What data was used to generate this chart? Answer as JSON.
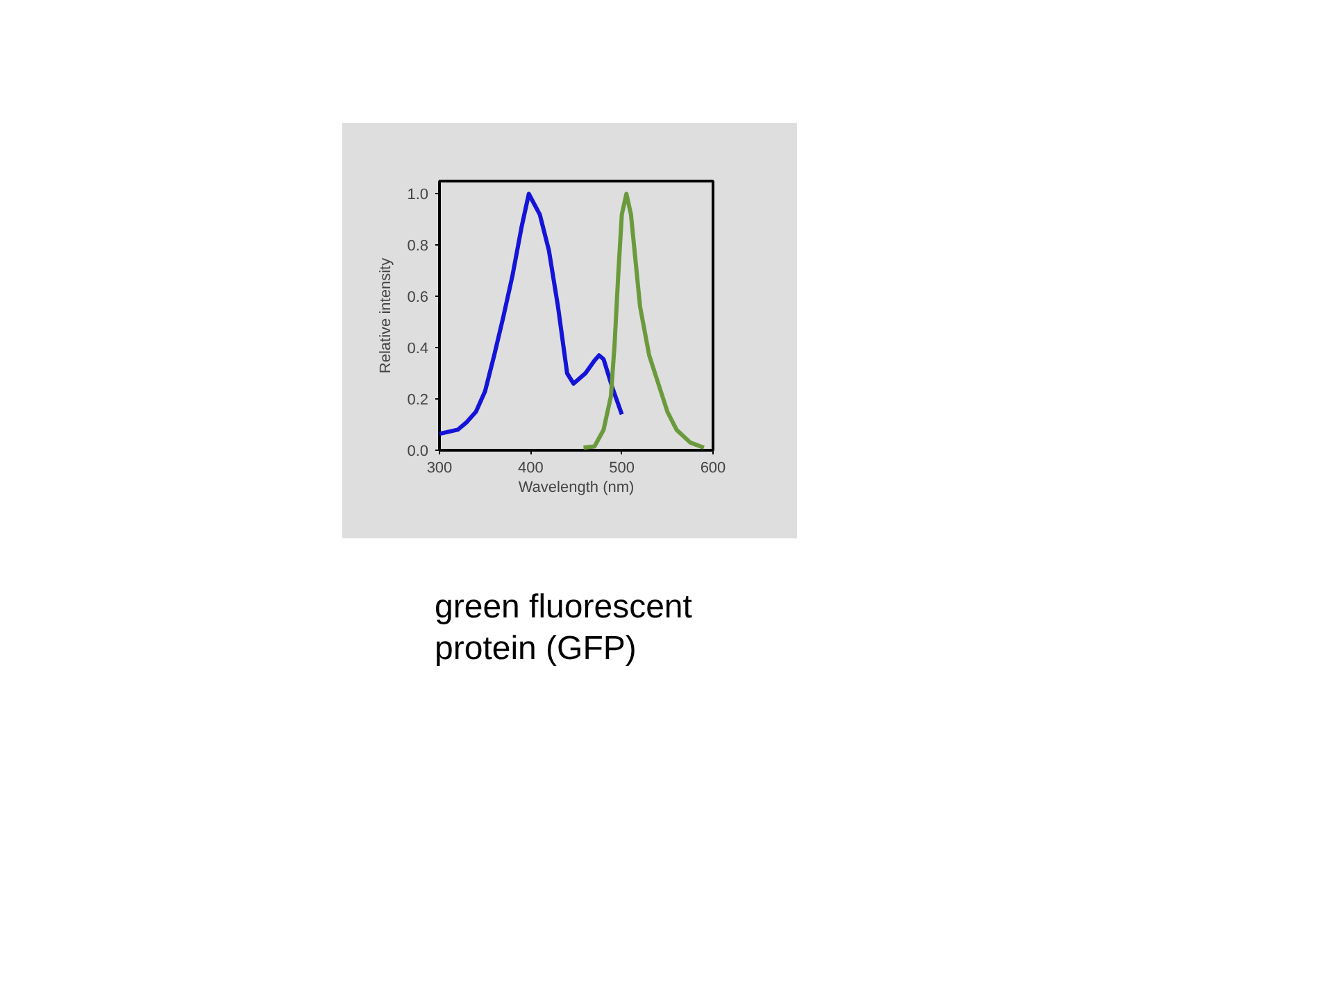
{
  "chart_data": {
    "type": "line",
    "xlabel": "Wavelength (nm)",
    "ylabel": "Relative intensity",
    "xlim": [
      300,
      600
    ],
    "ylim": [
      0,
      1.05
    ],
    "xticks": [
      300,
      400,
      500,
      600
    ],
    "yticks": [
      {
        "value": 0,
        "label": "0.0"
      },
      {
        "value": 0.2,
        "label": "0.2"
      },
      {
        "value": 0.4,
        "label": "0.4"
      },
      {
        "value": 0.6,
        "label": "0.6"
      },
      {
        "value": 0.8,
        "label": "0.8"
      },
      {
        "value": 1,
        "label": "1.0"
      }
    ],
    "grid": false,
    "line_style": "solid",
    "marker": "none",
    "series": [
      {
        "color": "#1414d8",
        "x": [
          300,
          320,
          330,
          340,
          350,
          360,
          370,
          380,
          390,
          398,
          410,
          420,
          430,
          440,
          447,
          460,
          470,
          475,
          480,
          490,
          500
        ],
        "values": [
          0.064,
          0.08,
          0.11,
          0.15,
          0.23,
          0.37,
          0.52,
          0.68,
          0.87,
          1.0,
          0.92,
          0.78,
          0.56,
          0.3,
          0.26,
          0.3,
          0.35,
          0.37,
          0.355,
          0.24,
          0.14
        ]
      },
      {
        "color": "#6b9a3c",
        "x": [
          458,
          470,
          480,
          488,
          492,
          496,
          500,
          505,
          510,
          515,
          520,
          530,
          540,
          550,
          560,
          575,
          590
        ],
        "values": [
          0.01,
          0.015,
          0.08,
          0.21,
          0.41,
          0.68,
          0.92,
          1.0,
          0.92,
          0.74,
          0.56,
          0.37,
          0.26,
          0.15,
          0.08,
          0.03,
          0.01
        ]
      }
    ],
    "annotations": [
      "green fluorescent protein (GFP)"
    ]
  }
}
